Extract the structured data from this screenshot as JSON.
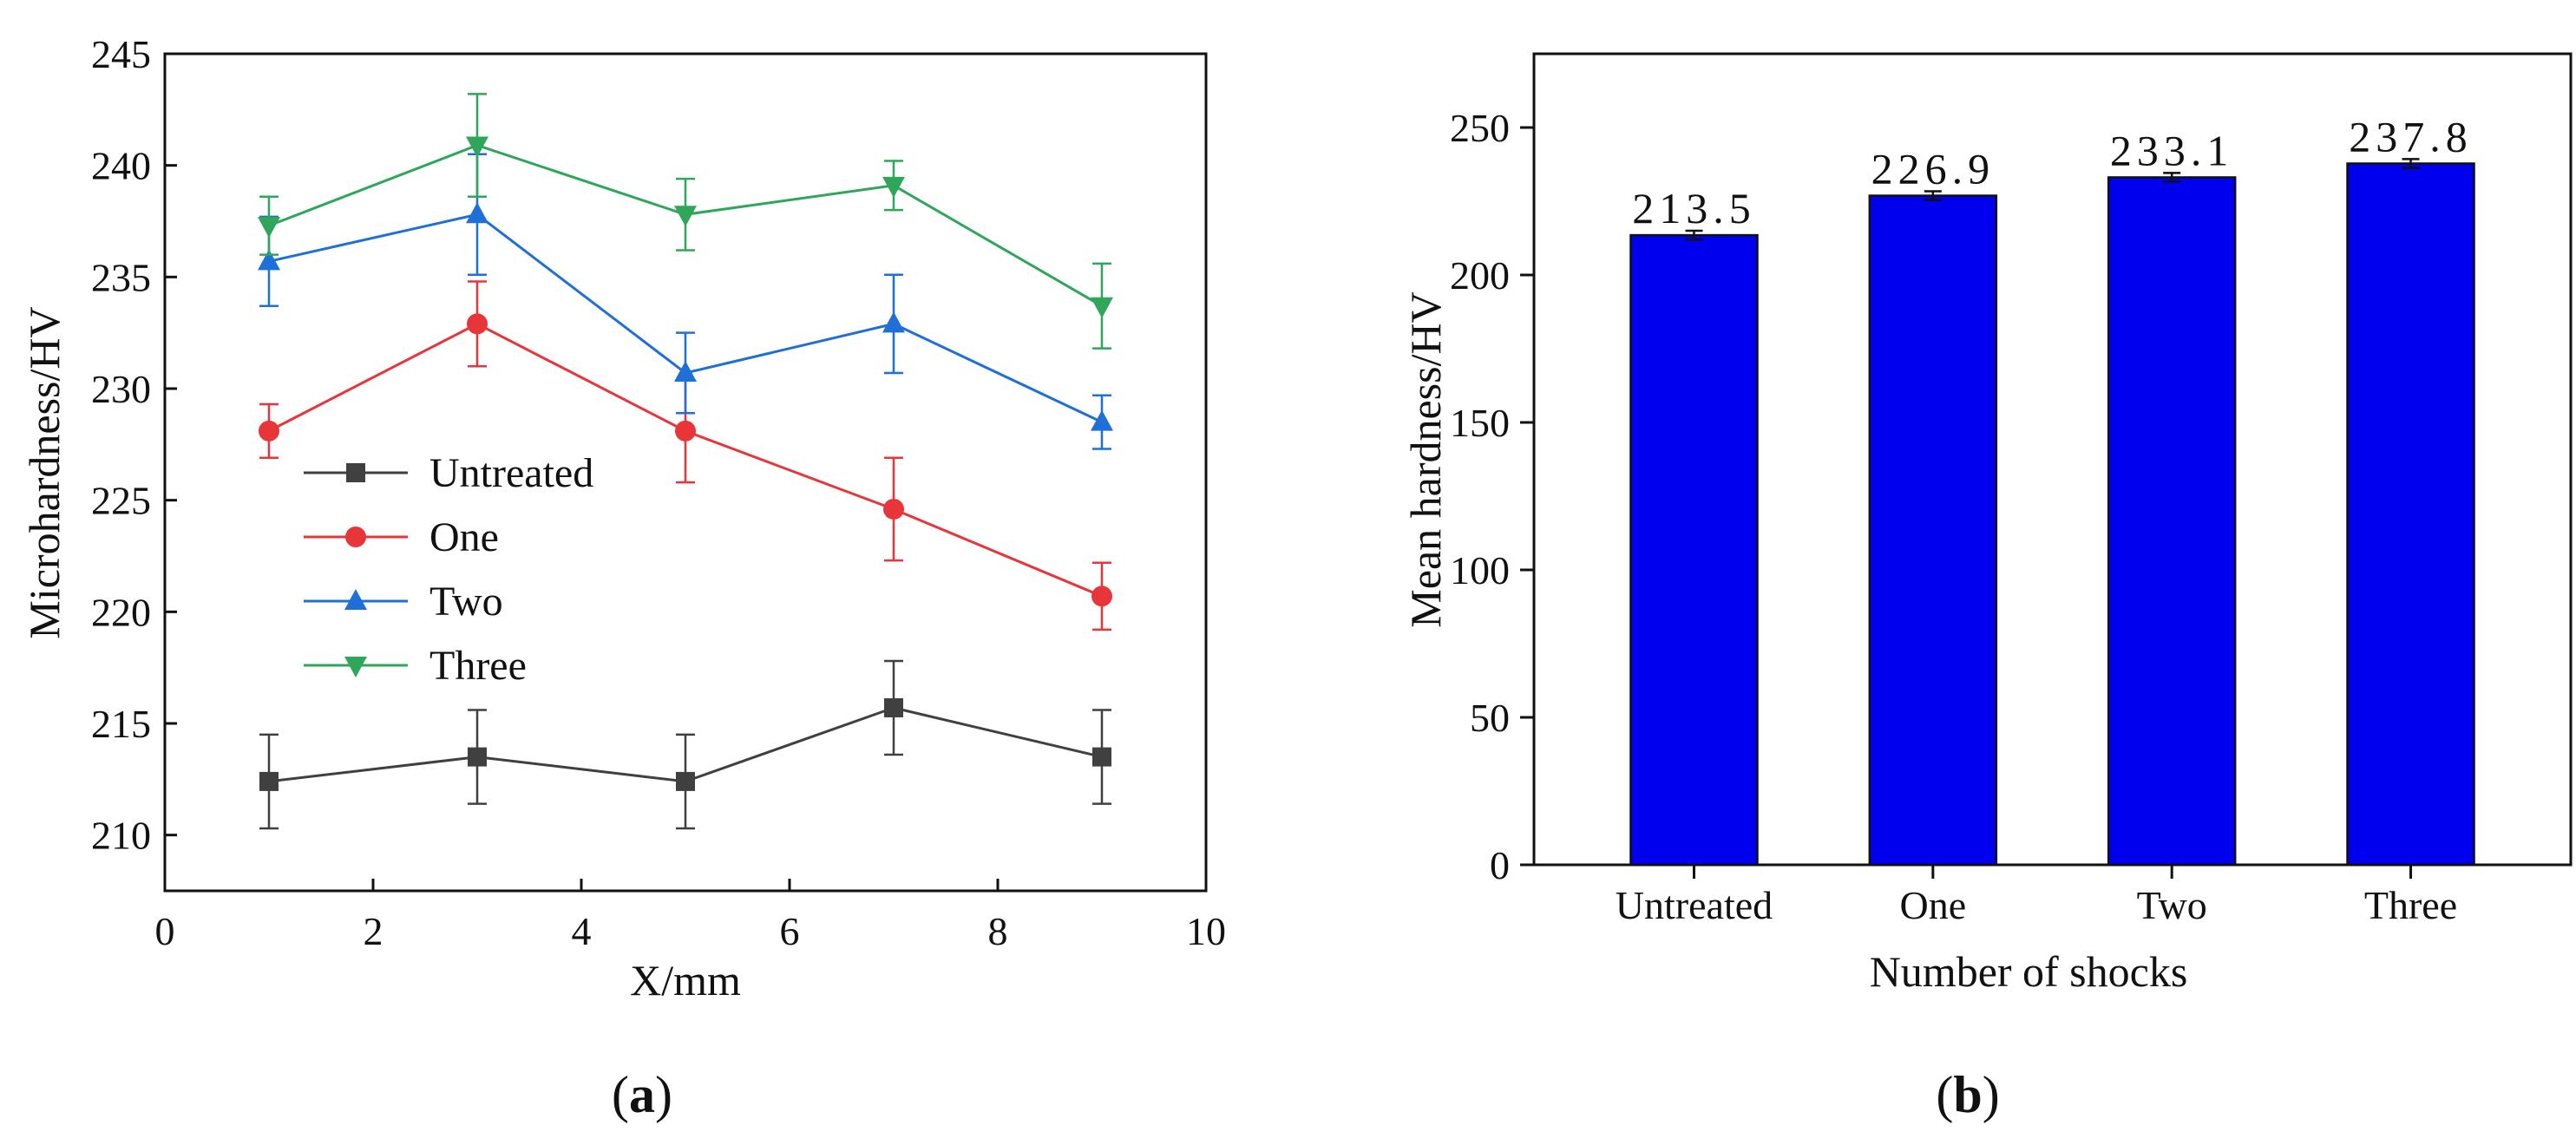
{
  "chart_data": [
    {
      "type": "line",
      "panel_label": {
        "open": "(",
        "letter": "a",
        "close": ")"
      },
      "xlabel": "X/mm",
      "ylabel": "Microhardness/HV",
      "xlim": [
        0,
        10
      ],
      "ylim": [
        207.5,
        245
      ],
      "xticks": [
        0,
        2,
        4,
        6,
        8,
        10
      ],
      "yticks": [
        210,
        215,
        220,
        225,
        230,
        235,
        240,
        245
      ],
      "grid": false,
      "legend_position": "center-left",
      "x": [
        1,
        3,
        5,
        7,
        9
      ],
      "series": [
        {
          "name": "Untreated",
          "color": "#404040",
          "marker": "square",
          "values": [
            212.4,
            213.5,
            212.4,
            215.7,
            213.5
          ],
          "errors": [
            2.1,
            2.1,
            2.1,
            2.1,
            2.1
          ]
        },
        {
          "name": "One",
          "color": "#e8353a",
          "marker": "circle",
          "values": [
            228.1,
            232.9,
            228.1,
            224.6,
            220.7
          ],
          "errors": [
            1.2,
            1.9,
            2.3,
            2.3,
            1.5
          ]
        },
        {
          "name": "Two",
          "color": "#1f6fd8",
          "marker": "triangle-up",
          "values": [
            235.7,
            237.8,
            230.7,
            232.9,
            228.5
          ],
          "errors": [
            2.0,
            2.7,
            1.8,
            2.2,
            1.2
          ]
        },
        {
          "name": "Three",
          "color": "#2fa65a",
          "marker": "triangle-down",
          "values": [
            237.3,
            240.9,
            237.8,
            239.1,
            233.7
          ],
          "errors": [
            1.3,
            2.3,
            1.6,
            1.1,
            1.9
          ]
        }
      ]
    },
    {
      "type": "bar",
      "panel_label": {
        "open": "(",
        "letter": "b",
        "close": ")"
      },
      "xlabel": "Number of shocks",
      "ylabel": "Mean hardness/HV",
      "ylim": [
        0,
        275
      ],
      "yticks": [
        0,
        50,
        100,
        150,
        200,
        250
      ],
      "grid": false,
      "bar_color": "#0000ee",
      "categories": [
        "Untreated",
        "One",
        "Two",
        "Three"
      ],
      "values": [
        213.5,
        226.9,
        233.1,
        237.8
      ],
      "errors": [
        1.5,
        1.5,
        1.5,
        1.5
      ],
      "value_labels": [
        "213.5",
        "226.9",
        "233.1",
        "237.8"
      ]
    }
  ]
}
